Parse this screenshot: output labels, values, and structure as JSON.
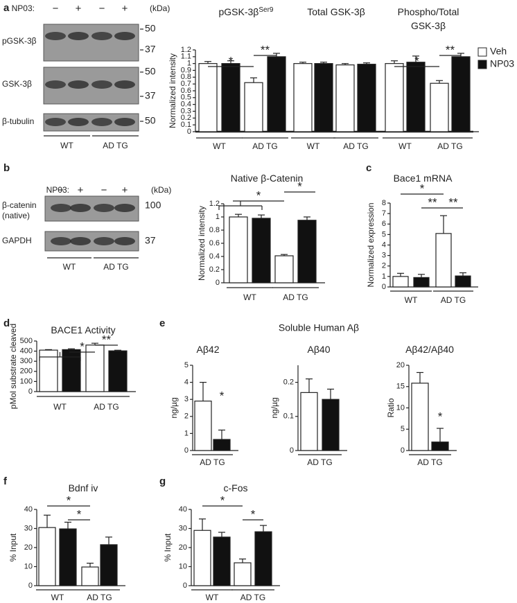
{
  "panels": [
    "a",
    "b",
    "c",
    "d",
    "e",
    "f",
    "g"
  ],
  "blots": [
    {
      "treatment": "NP03:",
      "lanes": [
        "−",
        "+",
        "−",
        "+"
      ],
      "unit": "(kDa)",
      "rows": [
        {
          "label": [
            "pGSK-3β"
          ],
          "markers": [
            "50",
            "37"
          ]
        },
        {
          "label": [
            "GSK-3β"
          ],
          "markers": [
            "50",
            "37"
          ]
        },
        {
          "label": [
            "β-tubulin"
          ],
          "markers": [
            "50"
          ]
        }
      ],
      "groups": [
        "WT",
        "AD TG"
      ]
    },
    {
      "treatment": "NP03:",
      "lanes": [
        "−",
        "+",
        "−",
        "+"
      ],
      "unit": "(kDa)",
      "rows": [
        {
          "label": [
            "β-catenin",
            "(native)"
          ],
          "markers": [
            "100"
          ]
        },
        {
          "label": [
            "GAPDH"
          ],
          "markers": [
            "37"
          ]
        }
      ],
      "groups": [
        "WT",
        "AD TG"
      ]
    }
  ],
  "panel_e_title": "Soluble Human Aβ",
  "chart_data": [
    {
      "type": "bar",
      "title": [
        "pGSK-3β"
      ],
      "title_sup": "Ser9",
      "ylabel": "Normalized intensity",
      "ylim": [
        0,
        1.2
      ],
      "yticks": [
        0,
        0.1,
        0.2,
        0.3,
        0.4,
        0.5,
        0.6,
        0.7,
        0.8,
        0.9,
        1,
        1.1,
        1.2
      ],
      "categories": [
        "WT",
        "AD TG"
      ],
      "series": [
        {
          "name": "Veh",
          "color": "#ffffff",
          "values": [
            1.0,
            0.72
          ],
          "errors": [
            0.03,
            0.07
          ]
        },
        {
          "name": "NP03",
          "color": "#111111",
          "values": [
            1.0,
            1.1
          ],
          "errors": [
            0.04,
            0.05
          ]
        }
      ],
      "significance": [
        "*",
        "**"
      ]
    },
    {
      "type": "bar",
      "title": [
        "Total GSK-3β"
      ],
      "categories": [
        "WT",
        "AD TG"
      ],
      "series": [
        {
          "color": "#ffffff",
          "values": [
            1.0,
            0.98
          ],
          "errors": [
            0.02,
            0.02
          ]
        },
        {
          "color": "#111111",
          "values": [
            1.0,
            0.99
          ],
          "errors": [
            0.02,
            0.02
          ]
        }
      ]
    },
    {
      "type": "bar",
      "title": [
        "Phospho/Total",
        "GSK-3β"
      ],
      "categories": [
        "WT",
        "AD TG"
      ],
      "series": [
        {
          "color": "#ffffff",
          "values": [
            1.0,
            0.71
          ],
          "errors": [
            0.04,
            0.04
          ]
        },
        {
          "color": "#111111",
          "values": [
            1.02,
            1.1
          ],
          "errors": [
            0.09,
            0.05
          ]
        }
      ],
      "significance": [
        "*",
        "**"
      ]
    },
    {
      "type": "bar",
      "title": [
        "Native β-Catenin"
      ],
      "ylabel": "Normalized intensity",
      "ylim": [
        0,
        1.2
      ],
      "yticks": [
        0,
        0.2,
        0.4,
        0.6,
        0.8,
        1,
        1.2
      ],
      "categories": [
        "WT",
        "AD TG"
      ],
      "series": [
        {
          "color": "#ffffff",
          "values": [
            1.0,
            0.41
          ],
          "errors": [
            0.04,
            0.02
          ]
        },
        {
          "color": "#111111",
          "values": [
            0.98,
            0.95
          ],
          "errors": [
            0.05,
            0.05
          ]
        }
      ],
      "significance": [
        "*",
        "*"
      ]
    },
    {
      "type": "bar",
      "title": [
        "Bace1 mRNA"
      ],
      "ylabel": "Normalized expression",
      "ylim": [
        0,
        8
      ],
      "yticks": [
        0,
        1,
        2,
        3,
        4,
        5,
        6,
        7,
        8
      ],
      "categories": [
        "WT",
        "AD TG"
      ],
      "series": [
        {
          "color": "#ffffff",
          "values": [
            1.0,
            5.1
          ],
          "errors": [
            0.3,
            1.7
          ]
        },
        {
          "color": "#111111",
          "values": [
            0.9,
            1.05
          ],
          "errors": [
            0.3,
            0.3
          ]
        }
      ],
      "significance": [
        "*",
        "**",
        "**"
      ]
    },
    {
      "type": "bar",
      "title": [
        "BACE1 Activity"
      ],
      "ylabel": "pMol substrate cleaved",
      "ylim": [
        0,
        500
      ],
      "yticks": [
        0,
        100,
        200,
        300,
        400,
        500
      ],
      "categories": [
        "WT",
        "AD TG"
      ],
      "series": [
        {
          "color": "#ffffff",
          "values": [
            410,
            460
          ],
          "errors": [
            5,
            18
          ]
        },
        {
          "color": "#111111",
          "values": [
            415,
            403
          ],
          "errors": [
            8,
            6
          ]
        }
      ],
      "significance": [
        "*",
        "**"
      ]
    },
    {
      "type": "bar",
      "title": [
        "Aβ42"
      ],
      "ylabel": "ng/µg",
      "ylim": [
        0,
        5
      ],
      "yticks": [
        0,
        1,
        2,
        3,
        4,
        5
      ],
      "categories": [
        "AD TG"
      ],
      "series": [
        {
          "color": "#ffffff",
          "values": [
            2.9
          ],
          "errors": [
            1.1
          ]
        },
        {
          "color": "#111111",
          "values": [
            0.65
          ],
          "errors": [
            0.55
          ]
        }
      ],
      "significance": [
        "*"
      ]
    },
    {
      "type": "bar",
      "title": [
        "Aβ40"
      ],
      "ylabel": "ng/µg",
      "ylim": [
        0,
        0.25
      ],
      "yticks": [
        0,
        0.1,
        0.2
      ],
      "categories": [
        "AD TG"
      ],
      "series": [
        {
          "color": "#ffffff",
          "values": [
            0.17
          ],
          "errors": [
            0.04
          ]
        },
        {
          "color": "#111111",
          "values": [
            0.15
          ],
          "errors": [
            0.03
          ]
        }
      ]
    },
    {
      "type": "bar",
      "title": [
        "Aβ42/Aβ40"
      ],
      "ylabel": "Ratio",
      "ylim": [
        0,
        20
      ],
      "yticks": [
        0,
        5,
        10,
        15,
        20
      ],
      "categories": [
        "AD TG"
      ],
      "series": [
        {
          "color": "#ffffff",
          "values": [
            15.8
          ],
          "errors": [
            2.5
          ]
        },
        {
          "color": "#111111",
          "values": [
            2
          ],
          "errors": [
            3.2
          ]
        }
      ],
      "significance": [
        "*"
      ]
    },
    {
      "type": "bar",
      "title": [
        "Bdnf iv"
      ],
      "ylabel": "% Input",
      "ylim": [
        0,
        40
      ],
      "yticks": [
        0,
        10,
        20,
        30,
        40
      ],
      "categories": [
        "WT",
        "AD TG"
      ],
      "series": [
        {
          "color": "#ffffff",
          "values": [
            30.5,
            9.8
          ],
          "errors": [
            6.5,
            2
          ]
        },
        {
          "color": "#111111",
          "values": [
            29.8,
            21.5
          ],
          "errors": [
            3.5,
            4
          ]
        }
      ],
      "significance": [
        "*",
        "*"
      ]
    },
    {
      "type": "bar",
      "title": [
        "c-Fos"
      ],
      "ylabel": "% Input",
      "ylim": [
        0,
        40
      ],
      "yticks": [
        0,
        10,
        20,
        30,
        40
      ],
      "categories": [
        "WT",
        "AD TG"
      ],
      "series": [
        {
          "color": "#ffffff",
          "values": [
            29,
            12
          ],
          "errors": [
            6,
            2
          ]
        },
        {
          "color": "#111111",
          "values": [
            25.5,
            28.3
          ],
          "errors": [
            2.5,
            3.3
          ]
        }
      ],
      "significance": [
        "*",
        "*"
      ]
    }
  ]
}
